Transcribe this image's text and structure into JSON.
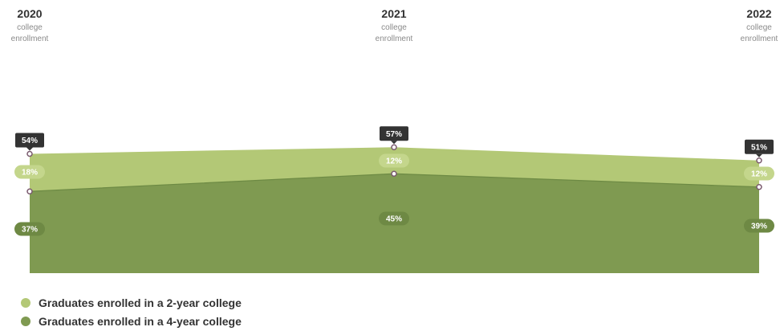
{
  "colors": {
    "two_year": "#b3c876",
    "four_year": "#7f9a51",
    "total_label_bg": "#333333",
    "four_year_pill": "#6e8944",
    "two_year_pill": "#c4d68c",
    "point_stroke": "#7a5a6e"
  },
  "chart_data": {
    "type": "area",
    "stacked": true,
    "categories": [
      {
        "year": "2020",
        "sub1": "college",
        "sub2": "enrollment"
      },
      {
        "year": "2021",
        "sub1": "college",
        "sub2": "enrollment"
      },
      {
        "year": "2022",
        "sub1": "college",
        "sub2": "enrollment"
      }
    ],
    "series": [
      {
        "name": "Graduates enrolled in a 4-year college",
        "values": [
          37,
          45,
          39
        ],
        "labels": [
          "37%",
          "45%",
          "39%"
        ]
      },
      {
        "name": "Graduates enrolled in a 2-year college",
        "values": [
          18,
          12,
          12
        ],
        "labels": [
          "18%",
          "12%",
          "12%"
        ]
      }
    ],
    "totals": {
      "values": [
        54,
        57,
        51
      ],
      "labels": [
        "54%",
        "57%",
        "51%"
      ]
    },
    "ylim": [
      0,
      100
    ],
    "grid": false,
    "legend_position": "bottom-left"
  },
  "legend": {
    "items": [
      {
        "label": "Graduates enrolled in a 2-year college",
        "color": "#b3c876"
      },
      {
        "label": "Graduates enrolled in a 4-year college",
        "color": "#7f9a51"
      }
    ]
  }
}
